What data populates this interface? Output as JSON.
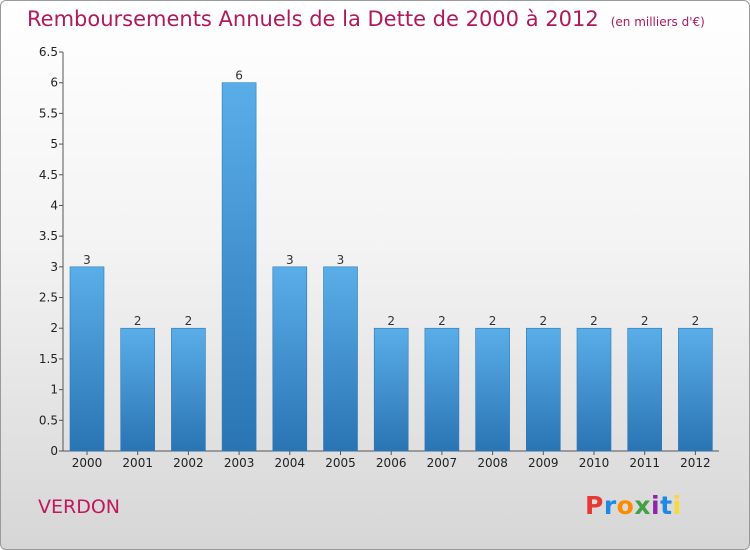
{
  "header": {
    "title": "Remboursements Annuels de la Dette de 2000 à 2012",
    "unit": "(en milliers d'€)"
  },
  "footer": {
    "commune": "VERDON",
    "logo_text": "Proxiti"
  },
  "colors": {
    "title": "#b0195c",
    "bar_top": "#5aaee8",
    "bar_bottom": "#2a74b4",
    "logo": [
      "#e53935",
      "#1e88e5",
      "#fb8c00",
      "#43a047",
      "#8e24aa",
      "#1e88e5",
      "#fdd835"
    ]
  },
  "chart_data": {
    "type": "bar",
    "categories": [
      "2000",
      "2001",
      "2002",
      "2003",
      "2004",
      "2005",
      "2006",
      "2007",
      "2008",
      "2009",
      "2010",
      "2011",
      "2012"
    ],
    "values": [
      3,
      2,
      2,
      6,
      3,
      3,
      2,
      2,
      2,
      2,
      2,
      2,
      2
    ],
    "data_labels": [
      "3",
      "2",
      "2",
      "6",
      "3",
      "3",
      "2",
      "2",
      "2",
      "2",
      "2",
      "2",
      "2"
    ],
    "y_ticks": [
      "0",
      "0.5",
      "1",
      "1.5",
      "2",
      "2.5",
      "3",
      "3.5",
      "4",
      "4.5",
      "5",
      "5.5",
      "6",
      "6.5"
    ],
    "ylim": [
      0,
      6.5
    ],
    "title": "Remboursements Annuels de la Dette de 2000 à 2012",
    "xlabel": "",
    "ylabel": "",
    "grid": false,
    "legend": "none"
  }
}
